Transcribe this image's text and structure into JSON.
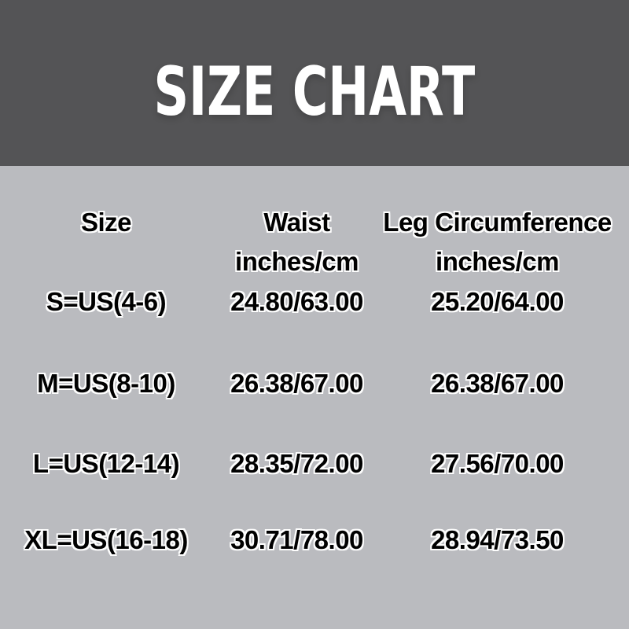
{
  "banner": {
    "title": "SIZE CHART"
  },
  "colors": {
    "banner_bg": "#545456",
    "page_bg": "#babbbf",
    "title_text": "#ffffff",
    "table_text": "#000000",
    "text_outline": "#fdfdfd"
  },
  "table": {
    "columns": [
      {
        "label": "Size",
        "sub": ""
      },
      {
        "label": "Waist",
        "sub": "inches/cm"
      },
      {
        "label": "Leg Circumference",
        "sub": "inches/cm"
      }
    ],
    "rows": [
      {
        "size": "S=US(4-6)",
        "waist": "24.80/63.00",
        "leg": "25.20/64.00"
      },
      {
        "size": "M=US(8-10)",
        "waist": "26.38/67.00",
        "leg": "26.38/67.00"
      },
      {
        "size": "L=US(12-14)",
        "waist": "28.35/72.00",
        "leg": "27.56/70.00"
      },
      {
        "size": "XL=US(16-18)",
        "waist": "30.71/78.00",
        "leg": "28.94/73.50"
      }
    ]
  },
  "chart_data": {
    "type": "table",
    "title": "SIZE CHART",
    "columns": [
      "Size",
      "Waist inches/cm",
      "Leg Circumference inches/cm"
    ],
    "rows": [
      [
        "S=US(4-6)",
        "24.80/63.00",
        "25.20/64.00"
      ],
      [
        "M=US(8-10)",
        "26.38/67.00",
        "26.38/67.00"
      ],
      [
        "L=US(12-14)",
        "28.35/72.00",
        "27.56/70.00"
      ],
      [
        "XL=US(16-18)",
        "30.71/78.00",
        "28.94/73.50"
      ]
    ]
  }
}
